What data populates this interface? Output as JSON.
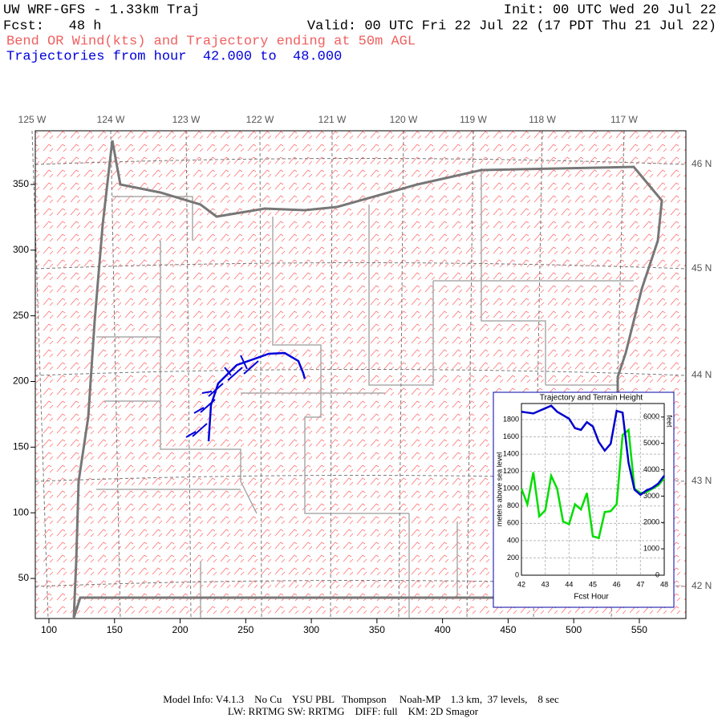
{
  "header": {
    "title": "UW WRF-GFS - 1.33km Traj",
    "init": "Init: 00 UTC Wed 20 Jul 22",
    "forecast": "Fcst:   48 h",
    "valid": "Valid: 00 UTC Fri 22 Jul 22 (17 PDT Thu 21 Jul 22)",
    "subtitle": "Bend OR Wind(kts) and Trajectory ending at 50m AGL",
    "trajectory_note": "Trajectories from hour  42.000 to  48.000"
  },
  "map": {
    "xlim": [
      89.6,
      585.5
    ],
    "ylim": [
      19.5,
      390.9
    ],
    "xticks": [
      100,
      150,
      200,
      250,
      300,
      350,
      400,
      450,
      500,
      550
    ],
    "yticks": [
      50,
      100,
      150,
      200,
      250,
      300,
      350
    ],
    "lon_labels": [
      "125 W",
      "124 W",
      "123 W",
      "122 W",
      "121 W",
      "120 W",
      "119 W",
      "118 W",
      "117 W"
    ],
    "lat_labels": [
      "46 N",
      "45 N",
      "44 N",
      "43 N",
      "42 N"
    ],
    "trajectory": {
      "color": "#0000dd",
      "x": [
        221.7,
        223.5,
        229.0,
        243.1,
        257.1,
        267.5,
        279.7,
        290.1,
        293.8,
        295.0
      ],
      "y": [
        154.5,
        182.0,
        198.5,
        212.5,
        217.4,
        221.1,
        221.7,
        215.6,
        206.4,
        202.1
      ]
    }
  },
  "chart_data": {
    "type": "line",
    "title": "Trajectory and Terrain Height",
    "x_label": "Fcst Hour",
    "y_label": "meters above sea level",
    "y2_label": "feet",
    "x": [
      42,
      42.25,
      42.5,
      42.75,
      43,
      43.25,
      43.5,
      43.75,
      44,
      44.25,
      44.5,
      44.75,
      45,
      45.25,
      45.5,
      45.75,
      46,
      46.25,
      46.5,
      46.75,
      47,
      47.25,
      47.5,
      47.75,
      48
    ],
    "series": [
      {
        "name": "Trajectory",
        "color": "#0000cc",
        "values": [
          1890,
          1880,
          1870,
          1900,
          1930,
          1960,
          1890,
          1850,
          1810,
          1700,
          1680,
          1770,
          1720,
          1540,
          1440,
          1520,
          1900,
          1880,
          1300,
          990,
          930,
          980,
          1010,
          1060,
          1150
        ]
      },
      {
        "name": "Terrain",
        "color": "#00dd00",
        "values": [
          1000,
          820,
          1190,
          680,
          750,
          1150,
          1000,
          620,
          590,
          820,
          760,
          950,
          450,
          430,
          730,
          740,
          820,
          1620,
          1680,
          1000,
          950,
          960,
          1000,
          1040,
          1120
        ]
      }
    ],
    "xlim": [
      42,
      48
    ],
    "xticks": [
      42,
      43,
      44,
      45,
      46,
      47,
      48
    ],
    "ylim": [
      0,
      1985
    ],
    "yticks": [
      0,
      200,
      400,
      600,
      800,
      1000,
      1200,
      1400,
      1600,
      1800
    ],
    "y2lim": [
      0,
      6512
    ],
    "y2ticks": [
      0,
      1000,
      2000,
      3000,
      4000,
      5000,
      6000
    ],
    "grid": true
  },
  "footer": [
    "Model Info: V4.1.3    No Cu    YSU PBL   Thompson     Noah-MP    1.3 km,  37 levels,    8 sec",
    "LW: RRTMG SW: RRTMG    DIFF: full    KM: 2D Smagor"
  ]
}
